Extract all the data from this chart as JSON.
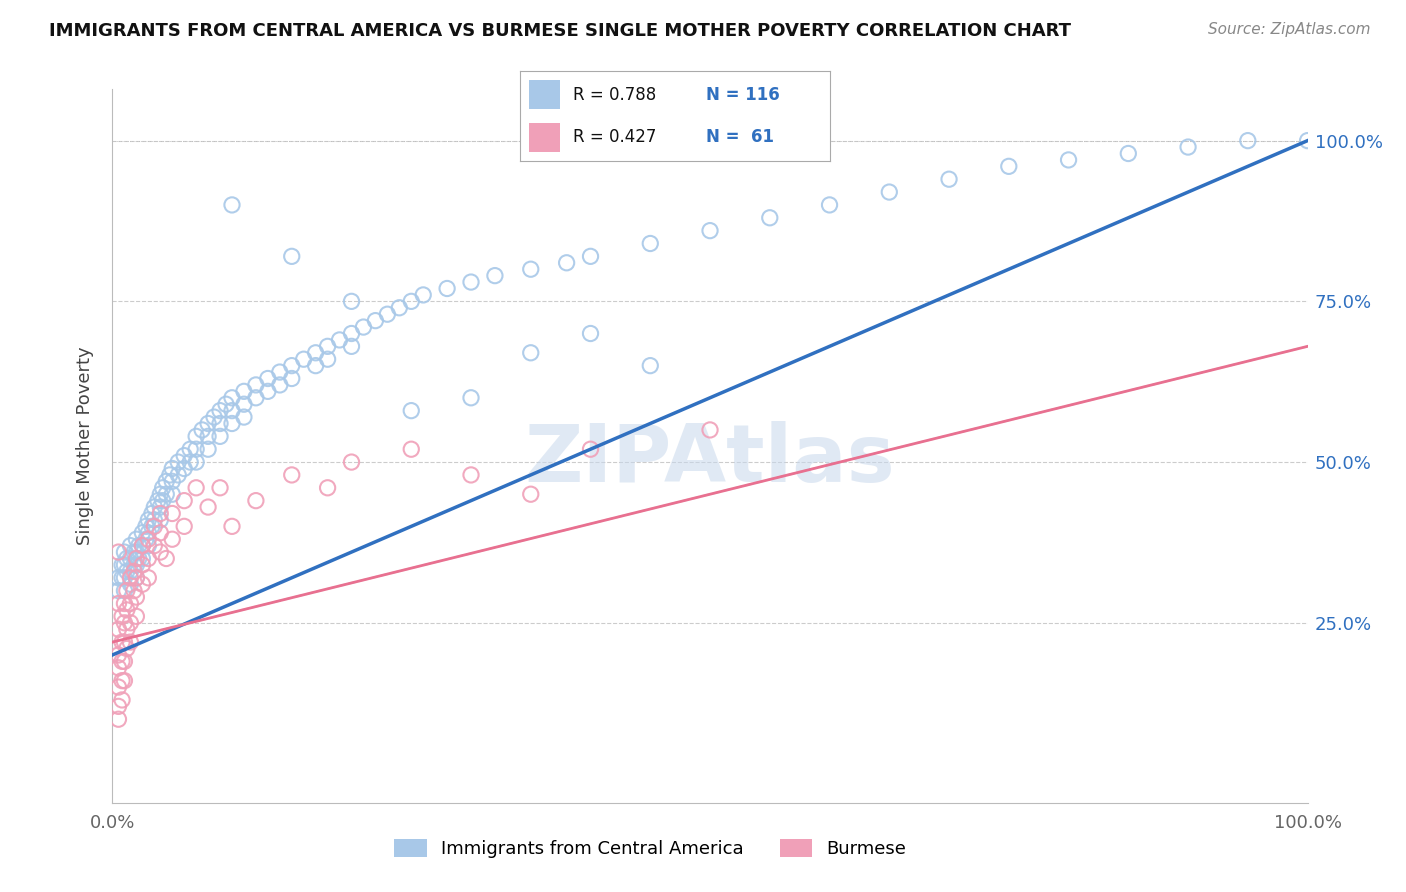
{
  "title": "IMMIGRANTS FROM CENTRAL AMERICA VS BURMESE SINGLE MOTHER POVERTY CORRELATION CHART",
  "source": "Source: ZipAtlas.com",
  "ylabel": "Single Mother Poverty",
  "xmin": 0.0,
  "xmax": 1.0,
  "ymin": -0.03,
  "ymax": 1.08,
  "ytick_labels": [
    "25.0%",
    "50.0%",
    "75.0%",
    "100.0%"
  ],
  "ytick_values": [
    0.25,
    0.5,
    0.75,
    1.0
  ],
  "color_blue": "#A8C8E8",
  "color_pink": "#F0A0B8",
  "color_blue_line": "#3070C0",
  "color_pink_line": "#E87090",
  "color_pink_dash": "#DDA0B0",
  "watermark": "ZIPAtlas",
  "blue_line_x0": 0.0,
  "blue_line_y0": 0.2,
  "blue_line_x1": 1.0,
  "blue_line_y1": 1.0,
  "pink_line_x0": 0.0,
  "pink_line_y0": 0.22,
  "pink_line_x1": 1.0,
  "pink_line_y1": 0.68,
  "blue_scatter": [
    [
      0.005,
      0.32
    ],
    [
      0.005,
      0.3
    ],
    [
      0.008,
      0.34
    ],
    [
      0.008,
      0.32
    ],
    [
      0.01,
      0.36
    ],
    [
      0.01,
      0.34
    ],
    [
      0.01,
      0.32
    ],
    [
      0.01,
      0.3
    ],
    [
      0.012,
      0.35
    ],
    [
      0.012,
      0.33
    ],
    [
      0.015,
      0.37
    ],
    [
      0.015,
      0.35
    ],
    [
      0.015,
      0.33
    ],
    [
      0.015,
      0.31
    ],
    [
      0.018,
      0.36
    ],
    [
      0.018,
      0.34
    ],
    [
      0.02,
      0.38
    ],
    [
      0.02,
      0.36
    ],
    [
      0.02,
      0.34
    ],
    [
      0.02,
      0.32
    ],
    [
      0.022,
      0.37
    ],
    [
      0.022,
      0.35
    ],
    [
      0.025,
      0.39
    ],
    [
      0.025,
      0.37
    ],
    [
      0.025,
      0.35
    ],
    [
      0.028,
      0.4
    ],
    [
      0.028,
      0.38
    ],
    [
      0.03,
      0.41
    ],
    [
      0.03,
      0.39
    ],
    [
      0.03,
      0.37
    ],
    [
      0.033,
      0.42
    ],
    [
      0.033,
      0.4
    ],
    [
      0.035,
      0.43
    ],
    [
      0.035,
      0.41
    ],
    [
      0.038,
      0.44
    ],
    [
      0.04,
      0.45
    ],
    [
      0.04,
      0.43
    ],
    [
      0.04,
      0.41
    ],
    [
      0.042,
      0.46
    ],
    [
      0.042,
      0.44
    ],
    [
      0.045,
      0.47
    ],
    [
      0.045,
      0.45
    ],
    [
      0.048,
      0.48
    ],
    [
      0.05,
      0.49
    ],
    [
      0.05,
      0.47
    ],
    [
      0.05,
      0.45
    ],
    [
      0.055,
      0.5
    ],
    [
      0.055,
      0.48
    ],
    [
      0.06,
      0.51
    ],
    [
      0.06,
      0.49
    ],
    [
      0.065,
      0.52
    ],
    [
      0.065,
      0.5
    ],
    [
      0.07,
      0.54
    ],
    [
      0.07,
      0.52
    ],
    [
      0.07,
      0.5
    ],
    [
      0.075,
      0.55
    ],
    [
      0.08,
      0.56
    ],
    [
      0.08,
      0.54
    ],
    [
      0.08,
      0.52
    ],
    [
      0.085,
      0.57
    ],
    [
      0.09,
      0.58
    ],
    [
      0.09,
      0.56
    ],
    [
      0.09,
      0.54
    ],
    [
      0.095,
      0.59
    ],
    [
      0.1,
      0.6
    ],
    [
      0.1,
      0.58
    ],
    [
      0.1,
      0.56
    ],
    [
      0.11,
      0.61
    ],
    [
      0.11,
      0.59
    ],
    [
      0.11,
      0.57
    ],
    [
      0.12,
      0.62
    ],
    [
      0.12,
      0.6
    ],
    [
      0.13,
      0.63
    ],
    [
      0.13,
      0.61
    ],
    [
      0.14,
      0.64
    ],
    [
      0.14,
      0.62
    ],
    [
      0.15,
      0.65
    ],
    [
      0.15,
      0.63
    ],
    [
      0.16,
      0.66
    ],
    [
      0.17,
      0.67
    ],
    [
      0.17,
      0.65
    ],
    [
      0.18,
      0.68
    ],
    [
      0.18,
      0.66
    ],
    [
      0.19,
      0.69
    ],
    [
      0.2,
      0.7
    ],
    [
      0.2,
      0.68
    ],
    [
      0.21,
      0.71
    ],
    [
      0.22,
      0.72
    ],
    [
      0.23,
      0.73
    ],
    [
      0.24,
      0.74
    ],
    [
      0.25,
      0.75
    ],
    [
      0.26,
      0.76
    ],
    [
      0.28,
      0.77
    ],
    [
      0.3,
      0.78
    ],
    [
      0.32,
      0.79
    ],
    [
      0.35,
      0.8
    ],
    [
      0.38,
      0.81
    ],
    [
      0.4,
      0.82
    ],
    [
      0.45,
      0.84
    ],
    [
      0.5,
      0.86
    ],
    [
      0.55,
      0.88
    ],
    [
      0.6,
      0.9
    ],
    [
      0.65,
      0.92
    ],
    [
      0.7,
      0.94
    ],
    [
      0.75,
      0.96
    ],
    [
      0.8,
      0.97
    ],
    [
      0.85,
      0.98
    ],
    [
      0.9,
      0.99
    ],
    [
      0.95,
      1.0
    ],
    [
      1.0,
      1.0
    ],
    [
      0.35,
      0.67
    ],
    [
      0.4,
      0.7
    ],
    [
      0.45,
      0.65
    ],
    [
      0.3,
      0.6
    ],
    [
      0.25,
      0.58
    ],
    [
      0.2,
      0.75
    ],
    [
      0.15,
      0.82
    ],
    [
      0.1,
      0.9
    ]
  ],
  "pink_scatter": [
    [
      0.005,
      0.28
    ],
    [
      0.005,
      0.24
    ],
    [
      0.005,
      0.2
    ],
    [
      0.005,
      0.18
    ],
    [
      0.005,
      0.15
    ],
    [
      0.005,
      0.12
    ],
    [
      0.005,
      0.1
    ],
    [
      0.005,
      0.36
    ],
    [
      0.008,
      0.26
    ],
    [
      0.008,
      0.22
    ],
    [
      0.008,
      0.19
    ],
    [
      0.008,
      0.16
    ],
    [
      0.008,
      0.13
    ],
    [
      0.01,
      0.28
    ],
    [
      0.01,
      0.25
    ],
    [
      0.01,
      0.22
    ],
    [
      0.01,
      0.19
    ],
    [
      0.01,
      0.16
    ],
    [
      0.012,
      0.3
    ],
    [
      0.012,
      0.27
    ],
    [
      0.012,
      0.24
    ],
    [
      0.012,
      0.21
    ],
    [
      0.015,
      0.32
    ],
    [
      0.015,
      0.28
    ],
    [
      0.015,
      0.25
    ],
    [
      0.015,
      0.22
    ],
    [
      0.018,
      0.33
    ],
    [
      0.018,
      0.3
    ],
    [
      0.02,
      0.35
    ],
    [
      0.02,
      0.32
    ],
    [
      0.02,
      0.29
    ],
    [
      0.02,
      0.26
    ],
    [
      0.025,
      0.37
    ],
    [
      0.025,
      0.34
    ],
    [
      0.025,
      0.31
    ],
    [
      0.03,
      0.38
    ],
    [
      0.03,
      0.35
    ],
    [
      0.03,
      0.32
    ],
    [
      0.035,
      0.4
    ],
    [
      0.035,
      0.37
    ],
    [
      0.04,
      0.42
    ],
    [
      0.04,
      0.39
    ],
    [
      0.04,
      0.36
    ],
    [
      0.045,
      0.35
    ],
    [
      0.05,
      0.38
    ],
    [
      0.05,
      0.42
    ],
    [
      0.06,
      0.4
    ],
    [
      0.06,
      0.44
    ],
    [
      0.07,
      0.46
    ],
    [
      0.08,
      0.43
    ],
    [
      0.09,
      0.46
    ],
    [
      0.1,
      0.4
    ],
    [
      0.12,
      0.44
    ],
    [
      0.15,
      0.48
    ],
    [
      0.18,
      0.46
    ],
    [
      0.2,
      0.5
    ],
    [
      0.25,
      0.52
    ],
    [
      0.3,
      0.48
    ],
    [
      0.35,
      0.45
    ],
    [
      0.4,
      0.52
    ],
    [
      0.5,
      0.55
    ]
  ]
}
